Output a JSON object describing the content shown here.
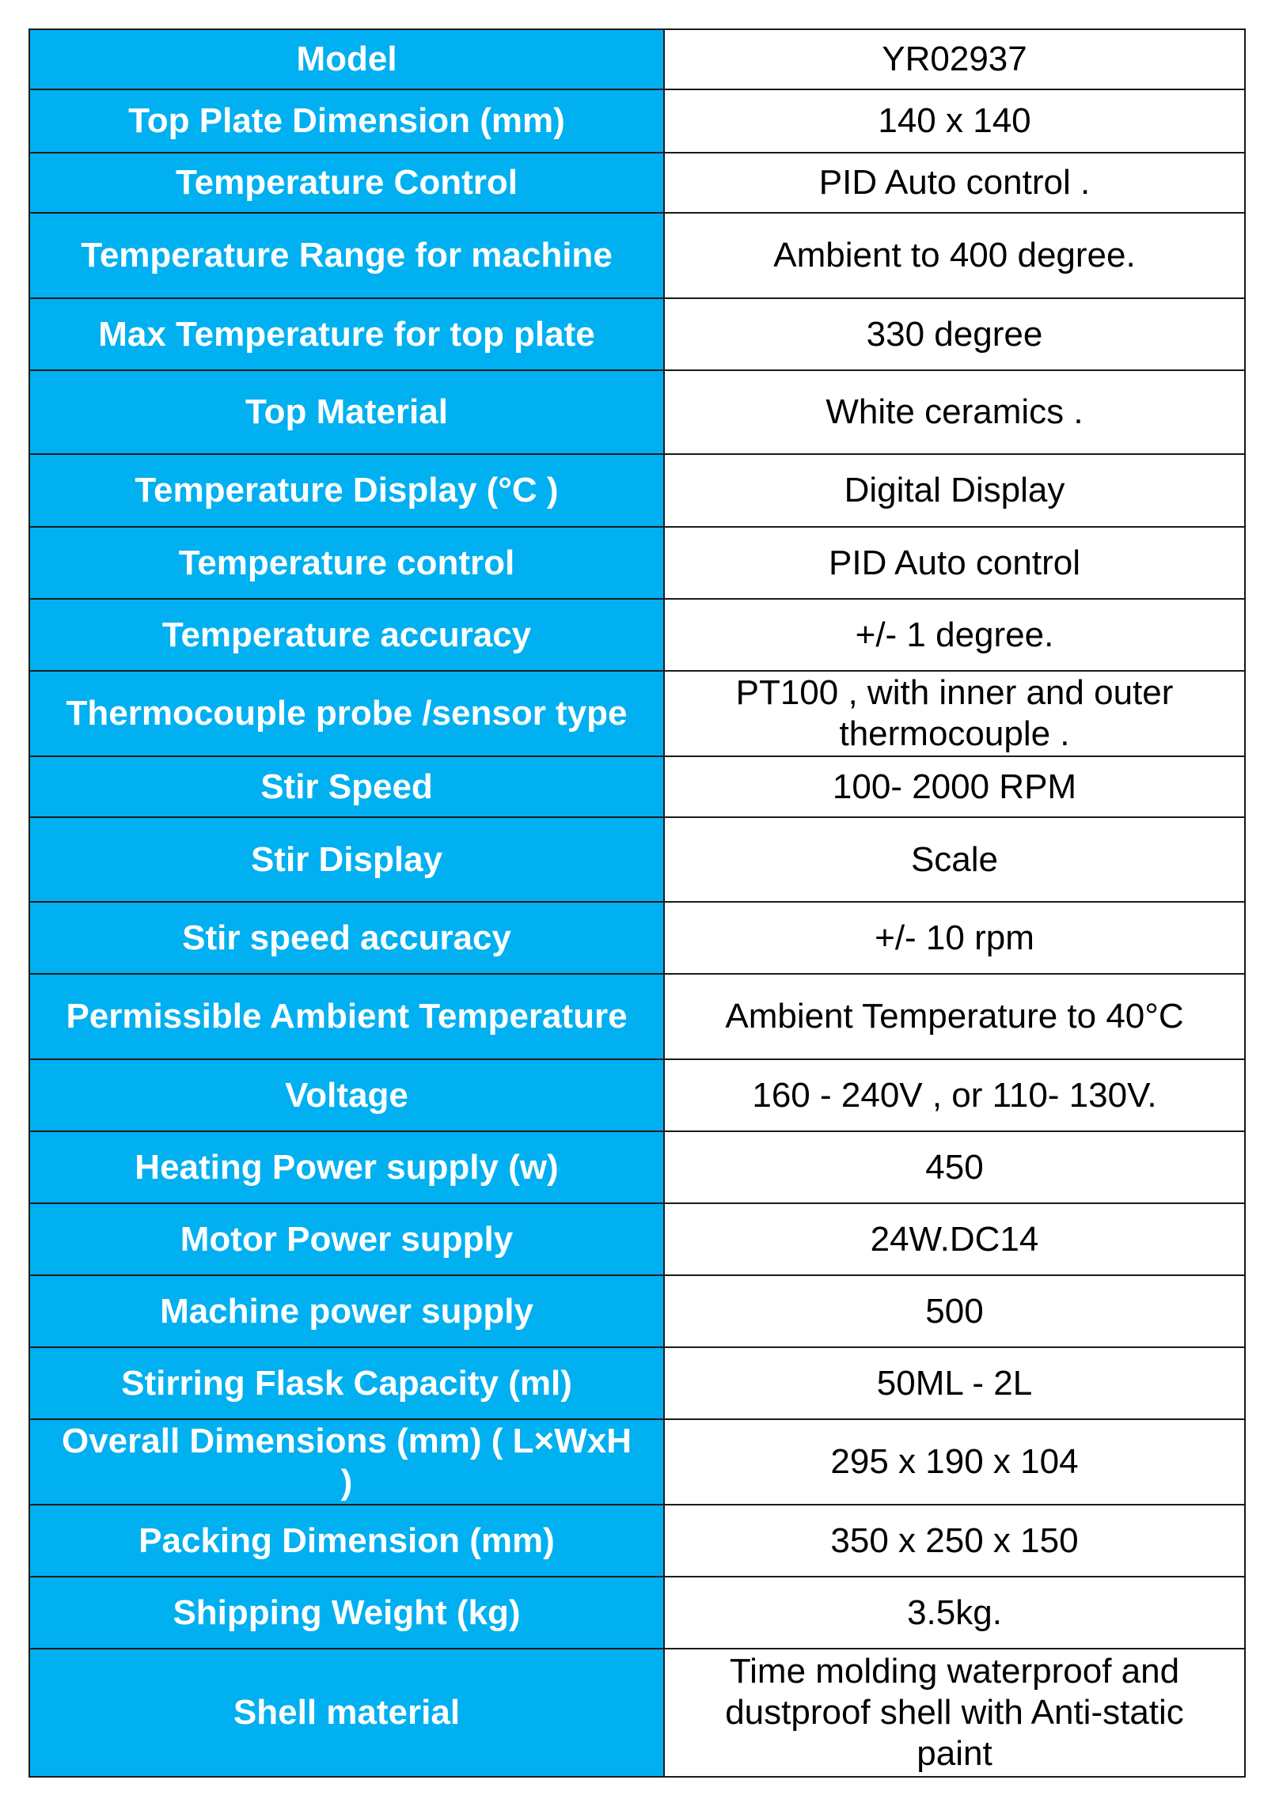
{
  "rows": [
    {
      "label": "Model",
      "value": "YR02937"
    },
    {
      "label": "Top Plate Dimension (mm)",
      "value": "140 x 140"
    },
    {
      "label": "Temperature  Control",
      "value": "PID Auto control ."
    },
    {
      "label": "Temperature Range for machine",
      "value": "Ambient to 400 degree."
    },
    {
      "label": "Max Temperature for top plate",
      "value": "330 degree"
    },
    {
      "label": "Top Material",
      "value": "White ceramics ."
    },
    {
      "label": "Temperature Display  (°C )",
      "value": "Digital Display"
    },
    {
      "label": "Temperature control",
      "value": "PID Auto control"
    },
    {
      "label": "Temperature accuracy",
      "value": "+/- 1 degree."
    },
    {
      "label": "Thermocouple probe /sensor type",
      "value": "PT100  , with inner and outer thermocouple ."
    },
    {
      "label": "Stir Speed",
      "value": "100- 2000 RPM"
    },
    {
      "label": "Stir Display",
      "value": "Scale"
    },
    {
      "label": "Stir speed accuracy",
      "value": "+/- 10 rpm"
    },
    {
      "label": "Permissible Ambient Temperature",
      "value": "Ambient Temperature to 40°C"
    },
    {
      "label": "Voltage",
      "value": "160 - 240V , or 110- 130V."
    },
    {
      "label": "Heating Power supply (w)",
      "value": "450"
    },
    {
      "label": "Motor Power supply",
      "value": "24W.DC14"
    },
    {
      "label": "Machine power supply",
      "value": "500"
    },
    {
      "label": "Stirring Flask Capacity (ml)",
      "value": "50ML - 2L"
    },
    {
      "label": "Overall Dimensions (mm)  ( L×WxH )",
      "value": "295 x 190 x 104"
    },
    {
      "label": "Packing Dimension (mm)",
      "value": "350 x 250 x 150"
    },
    {
      "label": "Shipping Weight (kg)",
      "value": "3.5kg."
    },
    {
      "label": "Shell material",
      "value": "Time molding waterproof and dustproof shell with Anti-static paint"
    }
  ],
  "colors": {
    "label_background": "#00b0f0",
    "label_text": "#ffffff",
    "value_text": "#000000",
    "border": "#1a1a1a"
  }
}
